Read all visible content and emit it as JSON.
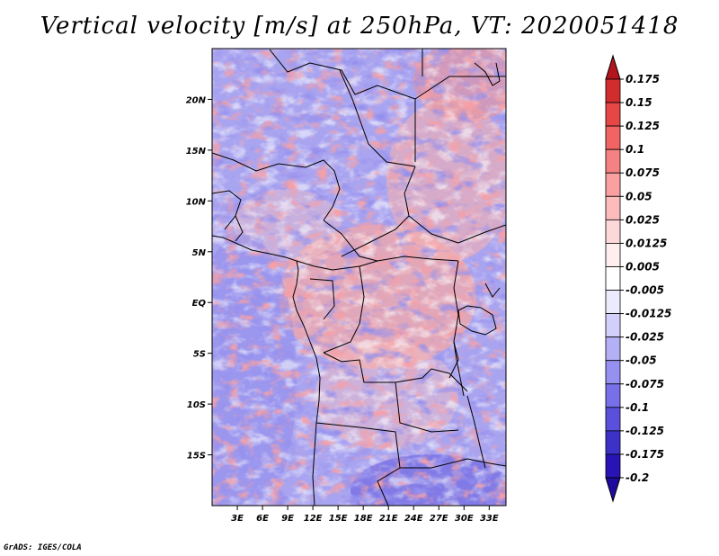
{
  "title": "Vertical velocity [m/s] at 250hPa, VT: 2020051418",
  "credit": "GrADS: IGES/COLA",
  "map": {
    "lon_range": [
      0,
      35
    ],
    "lat_range": [
      -20,
      25
    ],
    "lat_ticks": [
      {
        "value": 20,
        "label": "20N"
      },
      {
        "value": 15,
        "label": "15N"
      },
      {
        "value": 10,
        "label": "10N"
      },
      {
        "value": 5,
        "label": "5N"
      },
      {
        "value": 0,
        "label": "EQ"
      },
      {
        "value": -5,
        "label": "5S"
      },
      {
        "value": -10,
        "label": "10S"
      },
      {
        "value": -15,
        "label": "15S"
      }
    ],
    "lon_ticks": [
      {
        "value": 3,
        "label": "3E"
      },
      {
        "value": 6,
        "label": "6E"
      },
      {
        "value": 9,
        "label": "9E"
      },
      {
        "value": 12,
        "label": "12E"
      },
      {
        "value": 15,
        "label": "15E"
      },
      {
        "value": 18,
        "label": "18E"
      },
      {
        "value": 21,
        "label": "21E"
      },
      {
        "value": 24,
        "label": "24E"
      },
      {
        "value": 27,
        "label": "27E"
      },
      {
        "value": 30,
        "label": "30E"
      },
      {
        "value": 33,
        "label": "33E"
      }
    ]
  },
  "colorbar": {
    "levels": [
      "0.175",
      "0.15",
      "0.125",
      "0.1",
      "0.075",
      "0.05",
      "0.025",
      "0.0125",
      "0.005",
      "-0.005",
      "-0.0125",
      "-0.025",
      "-0.05",
      "-0.075",
      "-0.1",
      "-0.125",
      "-0.175",
      "-0.2"
    ],
    "colors": [
      "#b4141e",
      "#d22d2d",
      "#e64646",
      "#f06464",
      "#f58282",
      "#faa0a0",
      "#fcbcbc",
      "#fdd8d8",
      "#feeeee",
      "#ffffff",
      "#ecebfd",
      "#d2d0fa",
      "#b4b0f5",
      "#9690f0",
      "#7870e8",
      "#5a50dc",
      "#3c32c8",
      "#2814b4",
      "#1e0a9c"
    ]
  }
}
